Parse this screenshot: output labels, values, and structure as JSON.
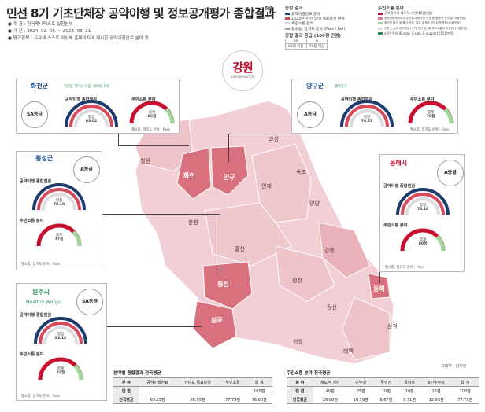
{
  "header": {
    "title": "민선 8기 기초단체장 공약이행 및 정보공개평가 종합결과",
    "meta": [
      {
        "label": "주    관",
        "value": ": 한국매니페스토 실천본부"
      },
      {
        "label": "기    간",
        "value": ": 2024. 02. 06. ~ 2024. 03. 21"
      },
      {
        "label": "평가항목",
        "value": ": 지자체 스스로 작성해 홈페이지에 게시한 공약이행완료 분야 등"
      }
    ]
  },
  "legend": {
    "label": "범례",
    "title_result": "종합 결과",
    "items_left": [
      "공약이행완료 분야",
      "2023년(민선 5기) 목표달성 분야",
      "주민소통 분야",
      "웹소통, 일치도 분야 (Pass / Fail)"
    ],
    "grade_table_title": "종합 결과 등급 (100점 만점)",
    "grade_table": [
      [
        "SA",
        "A"
      ],
      [
        "80점 이상",
        "78점 이상"
      ]
    ],
    "title_resident": "주민소통 분야",
    "items_right": [
      "공약확인의 제도적 기반(40점만점)",
      "공약이행계획에서 주민참여 평가단 구성 및 활동의 민주성(25점만점)",
      "정기적 평가 및 평가 과정, 결과 공개의 규체성 투명성(10점만점)",
      "주민 눈높이 정보제공 (공약 사진 등) 및 주민소통의 독창성(10점만점)",
      "e민주주의 (E-vote, E-poll, E-support)(15점만점)"
    ],
    "colors_left": [
      "#1f3a6e",
      "#d7485a",
      "#d9d9d9",
      "#9e9e9e"
    ],
    "colors_right": [
      "#c8102e",
      "#e57c8c",
      "#9fd79b",
      "#dcdcdc",
      "#2e8b57"
    ]
  },
  "emblem": {
    "text": "강원",
    "sub": "GANGWON STATE"
  },
  "map": {
    "region_labels": [
      "철원",
      "화천",
      "양구",
      "고성",
      "인제",
      "속초",
      "양양",
      "춘천",
      "홍천",
      "강릉",
      "횡성",
      "평창",
      "원주",
      "정선",
      "동해",
      "영월",
      "삼척",
      "태백"
    ],
    "highlight": [
      "화천",
      "양구",
      "횡성",
      "원주",
      "동해"
    ],
    "highlight_color": "#d9707e",
    "base_color": "#f1cfd4",
    "mid_color": "#e8aab4"
  },
  "panels": [
    {
      "id": "hwacheon",
      "logo": "화천군",
      "slogan": "자연을 지키는 사람, 새로운 화천",
      "grade": "SA등급",
      "sec1": "공약이행 종합점검",
      "gauge1": {
        "label": "평점",
        "value": "83.02"
      },
      "sec2": "주민소통 분야",
      "gauge2": {
        "label": "합계",
        "value": "86점"
      },
      "web": "웹소통, 일치도 분야 : Pass"
    },
    {
      "id": "yanggu",
      "logo": "양구군",
      "slogan": "행복양구",
      "grade": "A등급",
      "sec1": "공약이행 종합점검",
      "gauge1": {
        "label": "평점",
        "value": "78.57"
      },
      "sec2": "주민소통 분야",
      "gauge2": {
        "label": "합계",
        "value": "76점"
      },
      "web": "웹소통, 일치도 분야 : Pass"
    },
    {
      "id": "hoengseong",
      "logo": "횡성군",
      "slogan": "",
      "grade": "A등급",
      "sec1": "공약이행 종합점검",
      "gauge1": {
        "label": "평점",
        "value": "78.19"
      },
      "sec2": "주민소통 분야",
      "gauge2": {
        "label": "합계",
        "value": "77점"
      },
      "web": "웹소통, 일치도 분야 : Pass"
    },
    {
      "id": "donghae",
      "logo": "동해시",
      "slogan": "",
      "grade": "A등급",
      "sec1": "공약이행 종합점검",
      "gauge1": {
        "label": "평점",
        "value": "78.18"
      },
      "sec2": "주민소통 분야",
      "gauge2": {
        "label": "합계",
        "value": "80점"
      },
      "web": "웹소통, 일치도 분야 : Pass"
    },
    {
      "id": "wonju",
      "logo": "원주시",
      "slogan": "Healthy Wonju",
      "grade": "SA등급",
      "sec1": "공약이행 종합점검",
      "gauge1": {
        "label": "평점",
        "value": "83.14"
      },
      "sec2": "주민소통 분야",
      "gauge2": {
        "label": "합계",
        "value": "82점"
      },
      "web": "웹소통, 일치도 분야 : Pass"
    }
  ],
  "table1": {
    "title": "분야별 종합결과 전국평균",
    "header": [
      "분    야",
      "공약이행완료",
      "전년도 목표달성",
      "주민소통",
      "합    계"
    ],
    "rows": [
      [
        "만    점",
        "",
        "",
        "",
        "100점"
      ],
      [
        "전국평균",
        "63.05점",
        "86.95점",
        "77.79점",
        "76.60점"
      ]
    ]
  },
  "table2": {
    "title": "주민소통 분야 전국평균",
    "header": [
      "분    야",
      "제도적 기반",
      "민주성",
      "투명성",
      "독창성",
      "e민주주의",
      "합    계"
    ],
    "rows": [
      [
        "만    점",
        "40점",
        "25점",
        "10점",
        "10점",
        "15점",
        "100점"
      ],
      [
        "전국평균",
        "28.88점",
        "18.59점",
        "8.67점",
        "8.71점",
        "12.93점",
        "77.79점"
      ]
    ]
  },
  "credit": "그래픽 : 김지인"
}
